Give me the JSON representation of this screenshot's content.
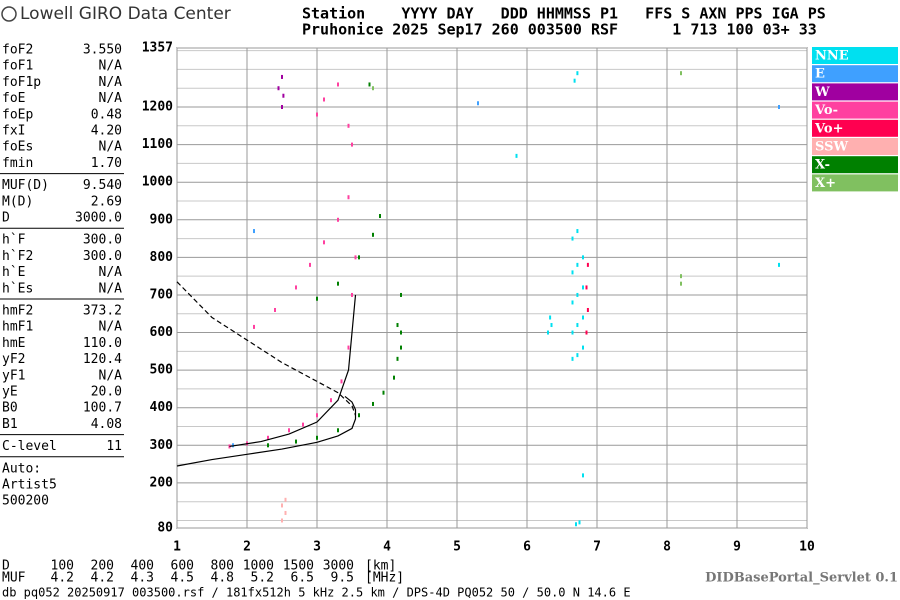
{
  "header": {
    "logo": "Lowell GIRO Data Center",
    "line1": "Station    YYYY DAY   DDD HHMMSS P1   FFS S AXN PPS IGA PS",
    "line2": "Pruhonice 2025 Sep17 260 003500 RSF      1 713 100 03+ 33"
  },
  "parameters": [
    [
      [
        "foF2",
        "3.550"
      ],
      [
        "foF1",
        "N/A"
      ],
      [
        "foF1p",
        "N/A"
      ],
      [
        "foE",
        "N/A"
      ],
      [
        "foEp",
        "0.48"
      ],
      [
        "fxI",
        "4.20"
      ],
      [
        "foEs",
        "N/A"
      ],
      [
        "fmin",
        "1.70"
      ]
    ],
    [
      [
        "MUF(D)",
        "9.540"
      ],
      [
        "M(D)",
        "2.69"
      ],
      [
        "D",
        "3000.0"
      ]
    ],
    [
      [
        "h`F",
        "300.0"
      ],
      [
        "h`F2",
        "300.0"
      ],
      [
        "h`E",
        "N/A"
      ],
      [
        "h`Es",
        "N/A"
      ]
    ],
    [
      [
        "hmF2",
        "373.2"
      ],
      [
        "hmF1",
        "N/A"
      ],
      [
        "hmE",
        "110.0"
      ],
      [
        "yF2",
        "120.4"
      ],
      [
        "yF1",
        "N/A"
      ],
      [
        "yE",
        "20.0"
      ],
      [
        "B0",
        "100.7"
      ],
      [
        "B1",
        "4.08"
      ]
    ],
    [
      [
        "C-level",
        "11"
      ]
    ]
  ],
  "auto": [
    "Auto:",
    "Artist5",
    "500200"
  ],
  "chart_data": {
    "type": "scatter",
    "xlim": [
      1,
      10
    ],
    "xticks": [
      1,
      2,
      3,
      4,
      5,
      6,
      7,
      8,
      9,
      10
    ],
    "ylim": [
      80,
      1357
    ],
    "yticks": [
      80,
      200,
      300,
      400,
      500,
      600,
      700,
      800,
      900,
      1000,
      1100,
      1200,
      1357
    ],
    "yminor": [
      100,
      150,
      250,
      350,
      450,
      550,
      650,
      750,
      850,
      950,
      1050,
      1150,
      1250,
      1300,
      1350
    ],
    "grid": true,
    "series": [
      {
        "name": "NNE",
        "color": "#00e0f0",
        "x": [
          6.65,
          6.65,
          6.65,
          6.65,
          6.65,
          6.72,
          6.72,
          6.72,
          6.72,
          6.72,
          6.8,
          6.8,
          6.8,
          6.8,
          6.3,
          6.33,
          6.35,
          6.7,
          6.75,
          6.8,
          6.68,
          6.72,
          9.6,
          5.85
        ],
        "values": [
          530,
          600,
          680,
          760,
          850,
          540,
          620,
          700,
          780,
          870,
          560,
          640,
          720,
          800,
          600,
          640,
          620,
          90,
          95,
          220,
          1270,
          1290,
          780,
          1070
        ]
      },
      {
        "name": "E",
        "color": "#3fa0ff",
        "x": [
          5.3,
          9.6,
          1.8,
          2.1
        ],
        "values": [
          1210,
          1200,
          300,
          870
        ]
      },
      {
        "name": "W",
        "color": "#a000a0",
        "x": [
          2.45,
          2.5,
          2.5,
          2.52
        ],
        "values": [
          1250,
          1200,
          1280,
          1230
        ]
      },
      {
        "name": "Vo-",
        "color": "#ff40a0",
        "x": [
          1.75,
          2.0,
          2.3,
          2.6,
          2.8,
          3.0,
          3.2,
          3.35,
          3.45,
          3.5,
          3.55,
          2.1,
          2.4,
          2.7,
          2.9,
          3.1,
          3.3,
          3.45,
          3.0,
          3.1,
          3.3,
          3.45,
          3.5
        ],
        "values": [
          297,
          305,
          320,
          340,
          355,
          380,
          420,
          470,
          560,
          700,
          800,
          615,
          660,
          720,
          780,
          840,
          900,
          960,
          1180,
          1220,
          1260,
          1150,
          1100
        ]
      },
      {
        "name": "Vo+",
        "color": "#ff0050",
        "x": [
          6.85,
          6.87,
          6.85,
          6.87
        ],
        "values": [
          600,
          660,
          720,
          780
        ]
      },
      {
        "name": "SSW",
        "color": "#ffb0b0",
        "x": [
          2.5,
          2.55,
          2.5,
          2.55
        ],
        "values": [
          100,
          120,
          140,
          155
        ]
      },
      {
        "name": "X-",
        "color": "#008000",
        "x": [
          2.3,
          2.7,
          3.0,
          3.3,
          3.6,
          3.8,
          3.95,
          4.1,
          4.15,
          4.2,
          4.2,
          3.0,
          3.3,
          3.6,
          3.8,
          3.9,
          3.75,
          4.15,
          4.2
        ],
        "values": [
          300,
          310,
          320,
          340,
          380,
          410,
          440,
          480,
          530,
          600,
          700,
          690,
          730,
          800,
          860,
          910,
          1260,
          620,
          560
        ]
      },
      {
        "name": "X+",
        "color": "#80c060",
        "x": [
          8.2,
          8.2,
          8.2,
          3.8
        ],
        "values": [
          750,
          1290,
          730,
          1250
        ]
      }
    ],
    "lines": [
      {
        "style": "solid",
        "x": [
          1,
          1.5,
          2,
          2.5,
          3,
          3.3,
          3.5,
          3.55,
          3.55,
          3.5,
          3.4
        ],
        "values": [
          245,
          262,
          276,
          290,
          308,
          325,
          345,
          370,
          395,
          415,
          430
        ]
      },
      {
        "style": "solid",
        "x": [
          1.75,
          2.2,
          2.6,
          3.0,
          3.3,
          3.45,
          3.5,
          3.55
        ],
        "values": [
          297,
          310,
          330,
          362,
          420,
          500,
          600,
          700
        ]
      },
      {
        "style": "dashed",
        "x": [
          1,
          1.5,
          2,
          2.5,
          3,
          3.3,
          3.5,
          3.55
        ],
        "values": [
          735,
          640,
          580,
          520,
          470,
          440,
          405,
          380
        ]
      }
    ]
  },
  "footer": {
    "distance_label": "D",
    "distances": [
      "100",
      "200",
      "400",
      "600",
      "800",
      "1000",
      "1500",
      "3000"
    ],
    "distance_unit": "[km]",
    "muf_label": "MUF",
    "mufs": [
      "4.2",
      "4.2",
      "4.3",
      "4.5",
      "4.8",
      "5.2",
      "6.5",
      "9.5"
    ],
    "muf_unit": "[MHz]",
    "servlet": "DIDBasePortal_Servlet 0.1",
    "info": "db pq052 20250917 003500.rsf / 181fx512h 5 kHz 2.5 km / DPS-4D PQ052 50 / 50.0 N 14.6 E"
  }
}
